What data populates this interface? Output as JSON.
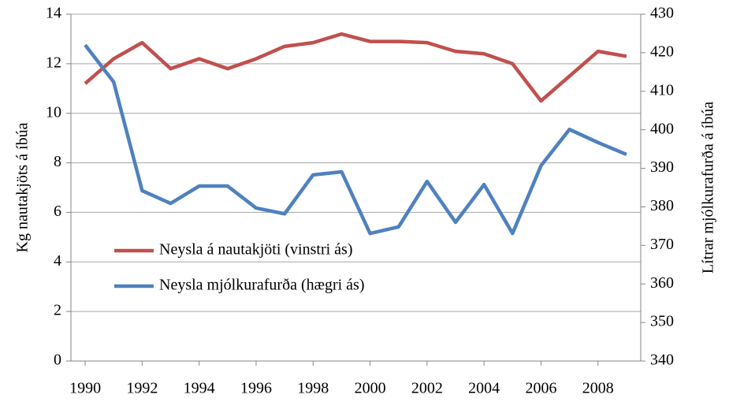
{
  "chart_data": {
    "type": "line",
    "x": [
      1990,
      1991,
      1992,
      1993,
      1994,
      1995,
      1996,
      1997,
      1998,
      1999,
      2000,
      2001,
      2002,
      2003,
      2004,
      2005,
      2006,
      2007,
      2008,
      2009
    ],
    "xlim": [
      1989.5,
      2009.5
    ],
    "xticks": [
      1990,
      1992,
      1994,
      1996,
      1998,
      2000,
      2002,
      2004,
      2006,
      2008
    ],
    "ylim": [
      0,
      14
    ],
    "yticks": [
      0,
      2,
      4,
      6,
      8,
      10,
      12,
      14
    ],
    "y2lim": [
      340,
      430
    ],
    "y2ticks": [
      340,
      350,
      360,
      370,
      380,
      390,
      400,
      410,
      420,
      430
    ],
    "ylabel": "Kg nautakjöts á íbúa",
    "y2label": "Lítrar mjólkurafurða á íbúa",
    "grid": true,
    "series": [
      {
        "name": "Neysla á nautakjöti (vinstri ás)",
        "color": "#c0504d",
        "values": [
          11.2,
          12.2,
          12.85,
          11.8,
          12.2,
          11.8,
          12.2,
          12.7,
          12.85,
          13.2,
          12.9,
          12.9,
          12.85,
          12.5,
          12.4,
          12.0,
          10.5,
          11.5,
          12.5,
          12.3
        ]
      },
      {
        "name": "Neysla mjólkurafurða (hægri ás)",
        "color": "#4f81bd",
        "axis": "y2",
        "values": [
          422,
          412.4,
          384.2,
          380.9,
          385.4,
          385.4,
          379.7,
          378.2,
          388.3,
          389.1,
          373.1,
          374.8,
          386.6,
          376,
          385.8,
          373.1,
          390.7,
          400.1,
          396.7,
          393.6
        ]
      }
    ]
  }
}
